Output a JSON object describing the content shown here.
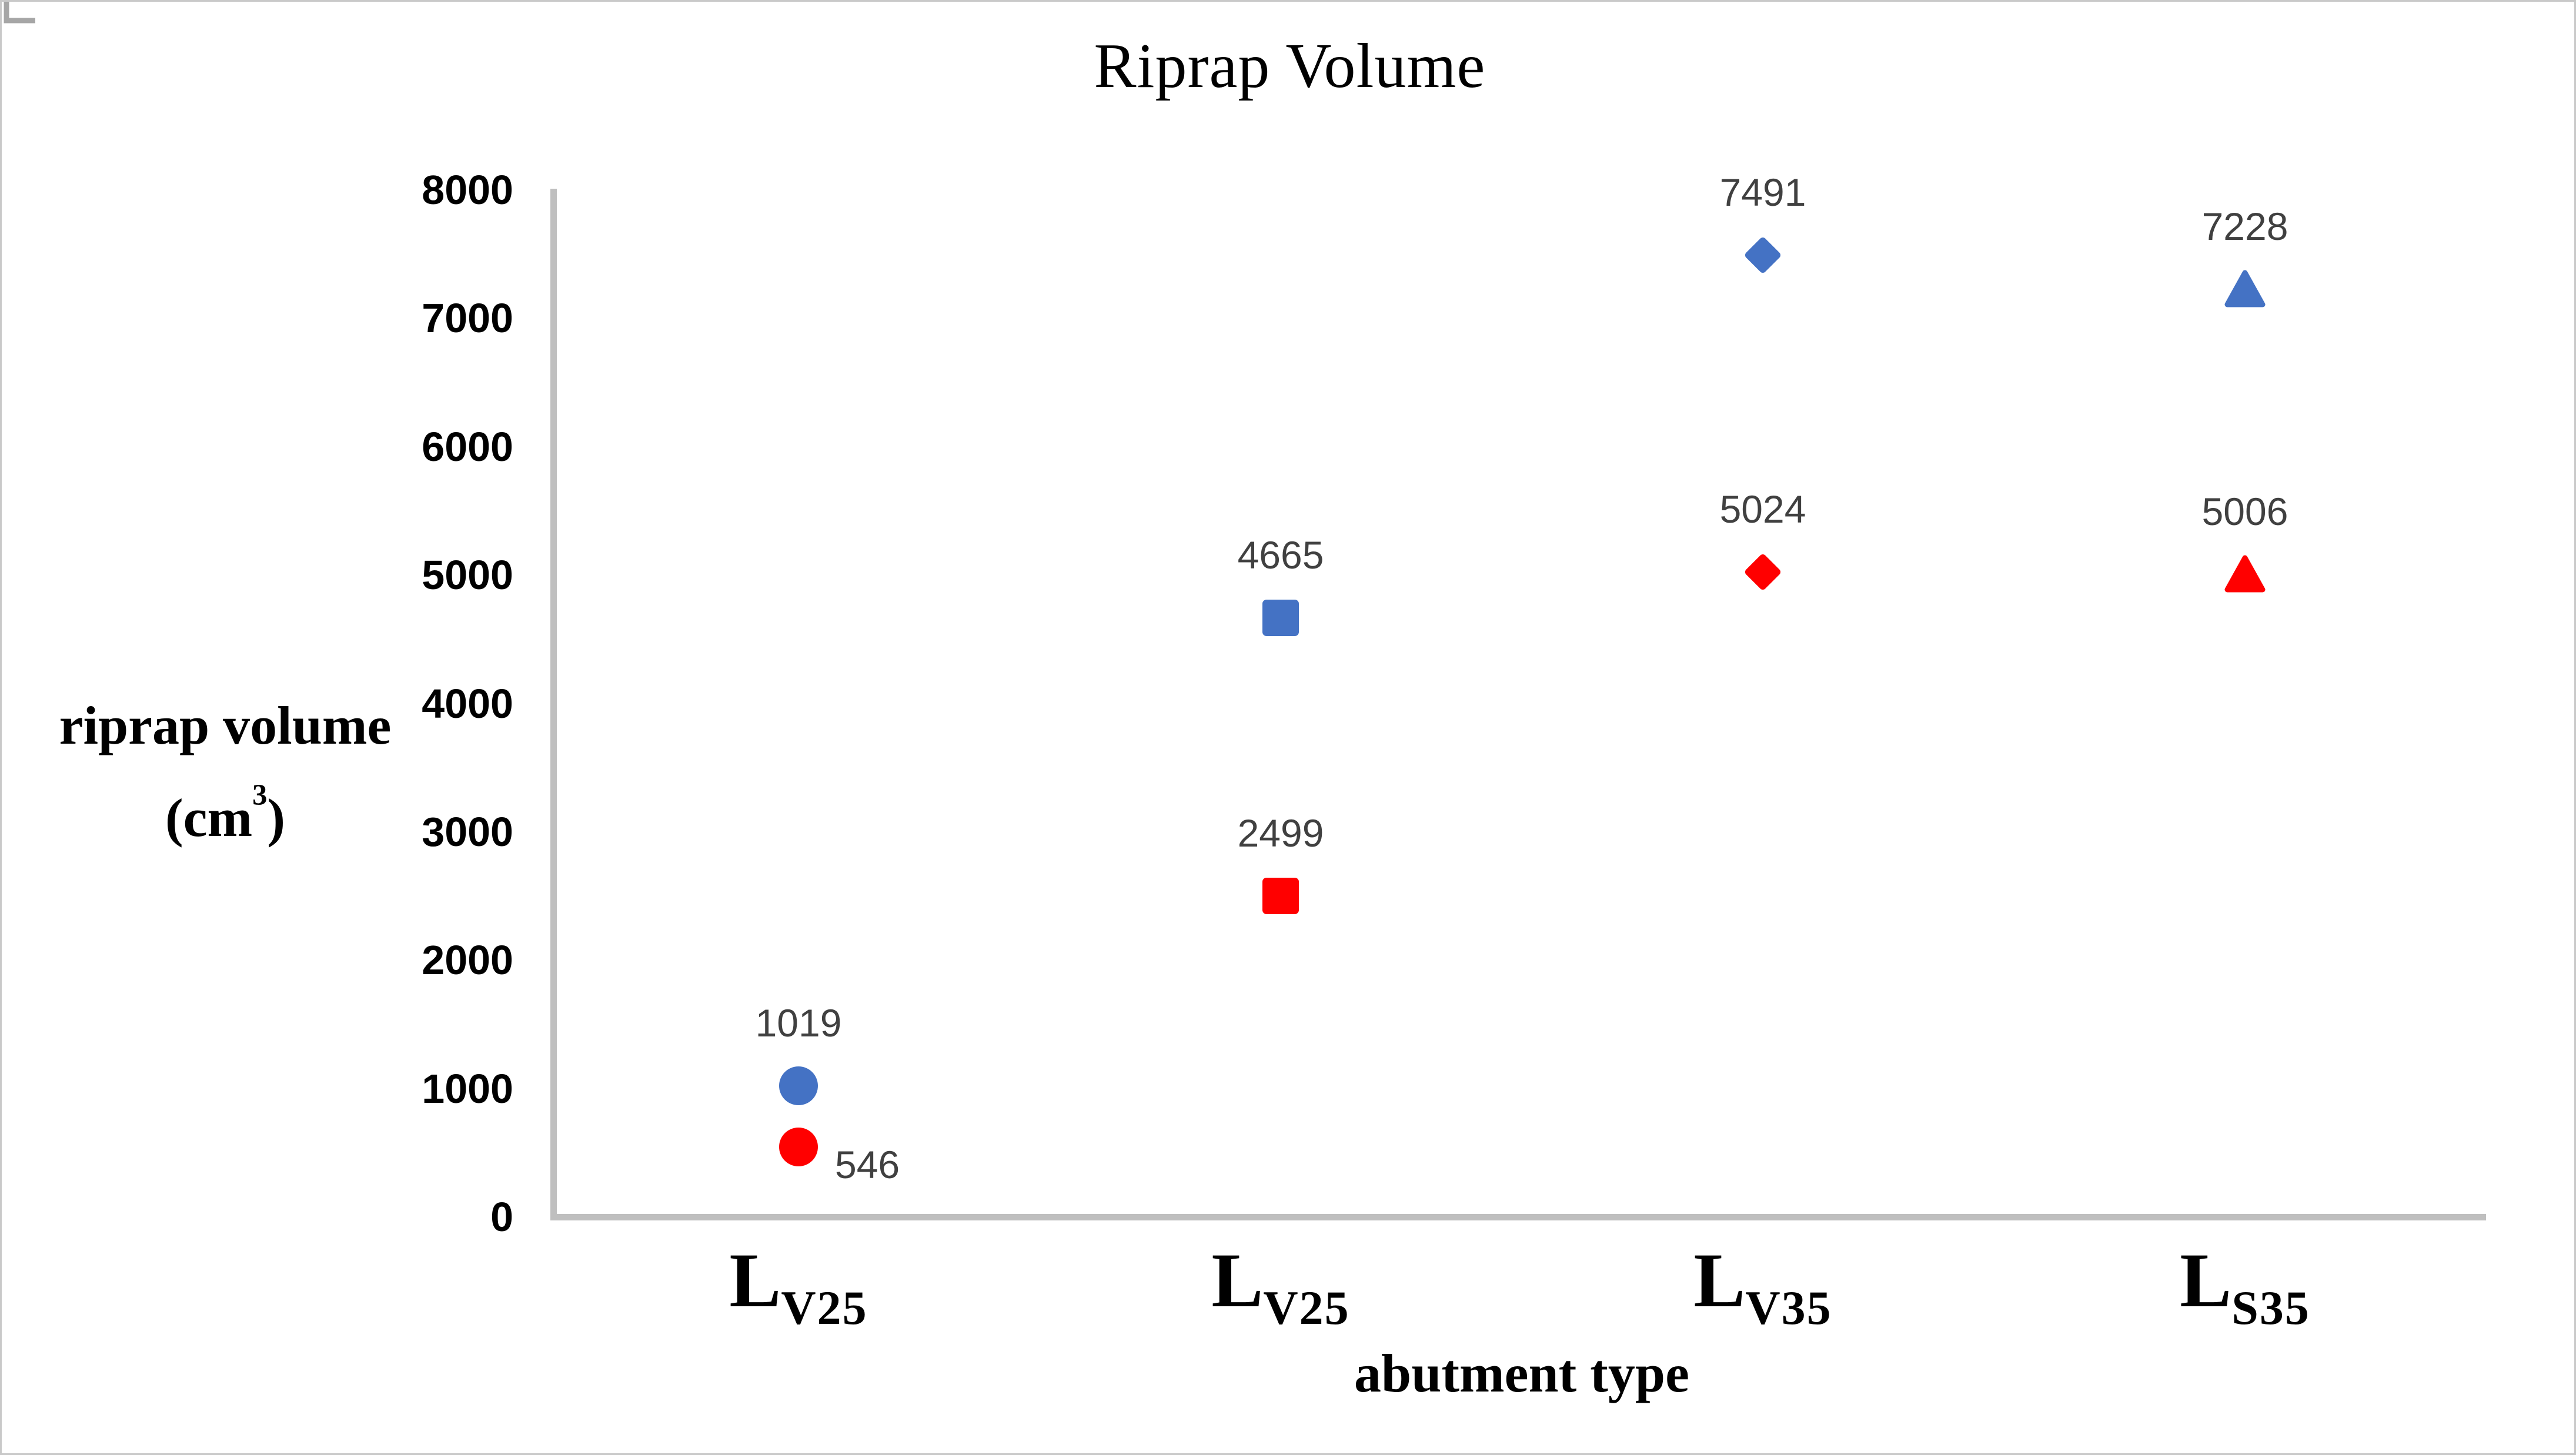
{
  "title": "Riprap Volume",
  "x_axis": {
    "title": "abutment type"
  },
  "y_axis": {
    "title_line1": "riprap volume",
    "title_line2_pre": "(cm",
    "title_line2_sup": "3",
    "title_line2_post": ")",
    "min": 0,
    "max": 8000,
    "tick_step": 1000
  },
  "chart_data": {
    "type": "scatter",
    "title": "Riprap Volume",
    "xlabel": "abutment type",
    "ylabel": "riprap volume (cm3)",
    "ylim": [
      0,
      8000
    ],
    "ytick_step": 1000,
    "grid": false,
    "legend": false,
    "categories": [
      {
        "main": "L",
        "sub": "V25"
      },
      {
        "main": "L",
        "sub": "V25"
      },
      {
        "main": "L",
        "sub": "V35"
      },
      {
        "main": "L",
        "sub": "S35"
      }
    ],
    "category_markers": [
      "circle",
      "square",
      "diamond",
      "triangle"
    ],
    "series": [
      {
        "color": "#4472C4",
        "values": [
          1019,
          4665,
          7491,
          7228
        ]
      },
      {
        "color": "#FF0000",
        "values": [
          546,
          2499,
          5024,
          5006
        ]
      }
    ],
    "data_label_color": "#404040",
    "special_label": {
      "series": 1,
      "index": 0,
      "placement": "right-with-leader",
      "leader_color": "#A6A6A6"
    },
    "axis_line_color": "#BFBFBF"
  }
}
